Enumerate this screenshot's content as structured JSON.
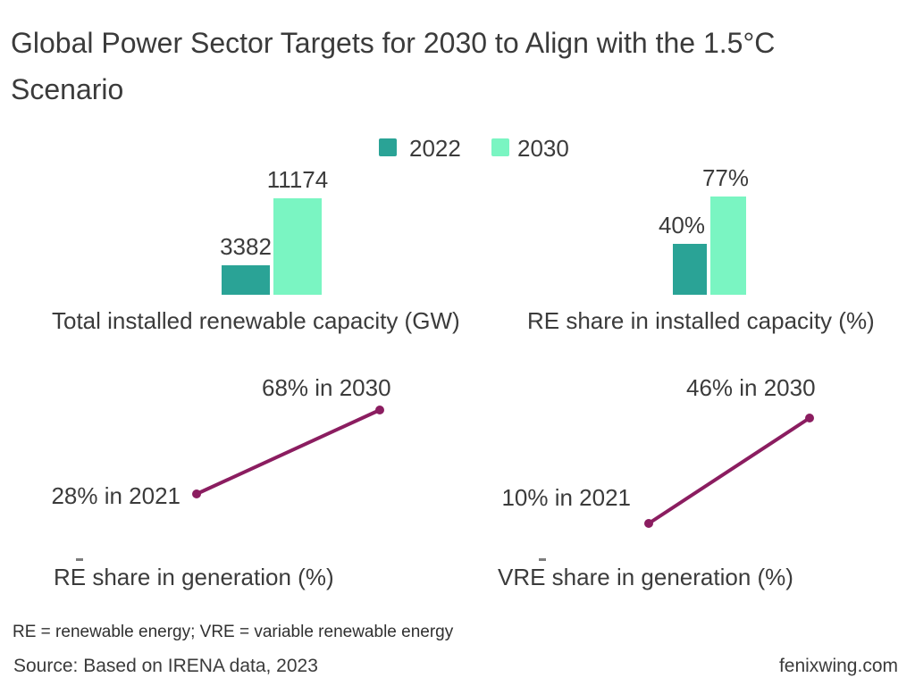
{
  "page": {
    "title_line1": "Global Power Sector Targets for 2030 to Align with the 1.5°C",
    "title_line2": "Scenario",
    "footnote": "RE = renewable energy; VRE = variable renewable energy",
    "source": "Source: Based on IRENA data, 2023",
    "website": "fenixwing.com"
  },
  "colors": {
    "year_2022": "#2aa396",
    "year_2030": "#7af5c2",
    "slope_line": "#8b1d60",
    "text": "#3b3b3b"
  },
  "legend": {
    "position": "top-center",
    "items": [
      {
        "label": "2022",
        "color": "#2aa396"
      },
      {
        "label": "2030",
        "color": "#7af5c2"
      }
    ]
  },
  "chart_data": [
    {
      "type": "bar",
      "title": "Total installed renewable capacity (GW)",
      "categories": [
        "2022",
        "2030"
      ],
      "values": [
        3382,
        11174
      ],
      "value_labels": [
        "3382",
        "11174"
      ],
      "colors": [
        "#2aa396",
        "#7af5c2"
      ],
      "grid": false,
      "axes_hidden": true
    },
    {
      "type": "bar",
      "title": "RE share in installed capacity (%)",
      "categories": [
        "2022",
        "2030"
      ],
      "values": [
        40,
        77
      ],
      "value_labels": [
        "40%",
        "77%"
      ],
      "colors": [
        "#2aa396",
        "#7af5c2"
      ],
      "grid": false,
      "axes_hidden": true
    },
    {
      "type": "line",
      "title": "RE share in generation (%)",
      "x": [
        2021,
        2030
      ],
      "values": [
        28,
        68
      ],
      "point_labels": [
        "28% in 2021",
        "68% in 2030"
      ],
      "color": "#8b1d60",
      "markers": true,
      "grid": false,
      "axes_hidden": true
    },
    {
      "type": "line",
      "title": "VRE share in generation (%)",
      "x": [
        2021,
        2030
      ],
      "values": [
        10,
        46
      ],
      "point_labels": [
        "10% in 2021",
        "46% in 2030"
      ],
      "color": "#8b1d60",
      "markers": true,
      "grid": false,
      "axes_hidden": true
    }
  ]
}
